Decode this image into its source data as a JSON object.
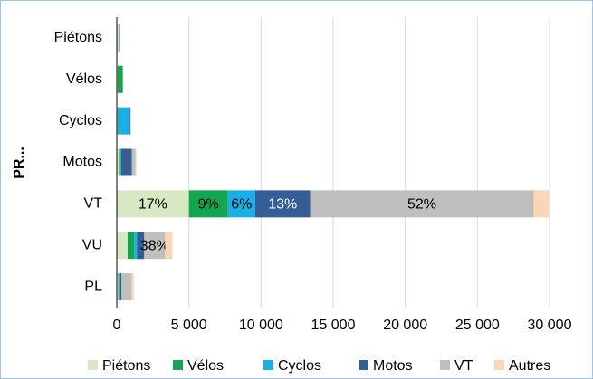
{
  "chart_data": {
    "type": "stacked-barh",
    "y_label": "PR...",
    "categories": [
      "Piétons",
      "Vélos",
      "Cyclos",
      "Motos",
      "VT",
      "VU",
      "PL"
    ],
    "series": [
      {
        "name": "Piétons",
        "color": "#d8e8c2",
        "values": [
          120,
          60,
          50,
          150,
          5000,
          750,
          100
        ],
        "value_labels": [
          null,
          null,
          null,
          null,
          "17%",
          null,
          null
        ]
      },
      {
        "name": "Vélos",
        "color": "#13a550",
        "values": [
          20,
          350,
          50,
          100,
          2700,
          450,
          50
        ],
        "value_labels": [
          null,
          null,
          null,
          null,
          "9%",
          null,
          null
        ]
      },
      {
        "name": "Cyclos",
        "color": "#19b0e6",
        "values": [
          0,
          0,
          800,
          50,
          1900,
          200,
          30
        ],
        "value_labels": [
          null,
          null,
          null,
          null,
          "6%",
          null,
          null
        ]
      },
      {
        "name": "Motos",
        "color": "#355e96",
        "values": [
          20,
          0,
          50,
          750,
          3800,
          500,
          150
        ],
        "value_labels": [
          null,
          null,
          null,
          null,
          "13%",
          null,
          null
        ]
      },
      {
        "name": "VT",
        "color": "#bfbfbf",
        "values": [
          20,
          30,
          30,
          250,
          15500,
          1450,
          700
        ],
        "value_labels": [
          null,
          null,
          null,
          null,
          "52%",
          "38%",
          null
        ]
      },
      {
        "name": "Autres",
        "color": "#fbd6b6",
        "values": [
          0,
          0,
          0,
          50,
          1050,
          500,
          150
        ],
        "value_labels": [
          null,
          null,
          null,
          null,
          null,
          null,
          null
        ]
      }
    ],
    "xlim": [
      0,
      30000
    ],
    "xticks": [
      0,
      {
        "value": 5000,
        "label": "5 000"
      },
      {
        "value": 10000,
        "label": "10 000"
      },
      {
        "value": 15000,
        "label": "15 000"
      },
      {
        "value": 20000,
        "label": "20 000"
      },
      {
        "value": 25000,
        "label": "25 000"
      },
      {
        "value": 30000,
        "label": "30 000"
      }
    ],
    "grid": true,
    "legend": "bottom"
  }
}
